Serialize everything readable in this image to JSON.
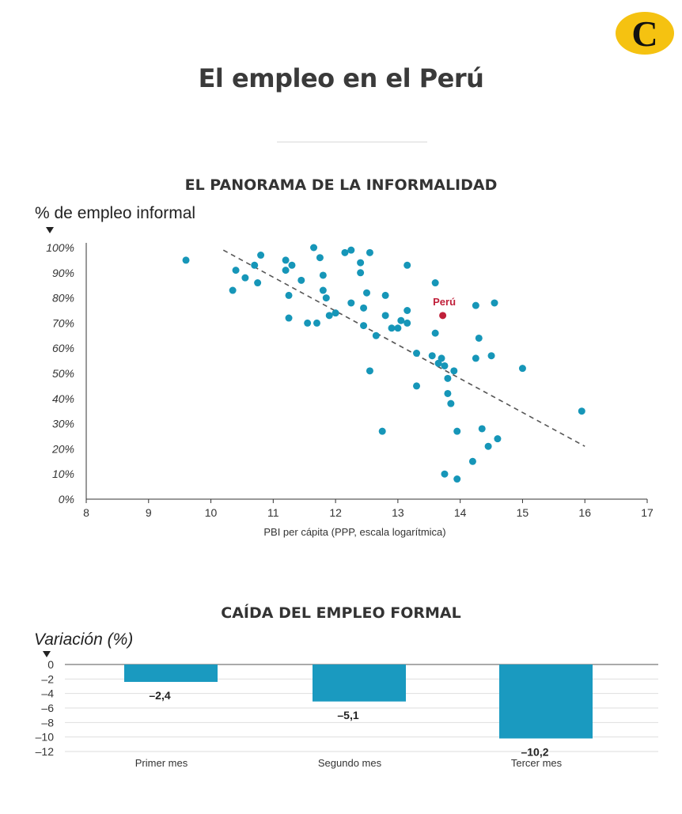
{
  "brand": {
    "logo_letter": "C",
    "logo_color": "#f5c211"
  },
  "title": "El empleo en el Perú",
  "colors": {
    "dots": "#1696b8",
    "bars": "#1a9ac0",
    "peru": "#c0203a",
    "trend": "#555555"
  },
  "chart_data": [
    {
      "type": "scatter",
      "title": "EL PANORAMA DE LA INFORMALIDAD",
      "ylabel": "% de empleo informal",
      "xlabel": "PBI per cápita (PPP, escala logarítmica)",
      "xlim": [
        8,
        17
      ],
      "ylim": [
        0,
        100
      ],
      "x_ticks": [
        "8",
        "9",
        "10",
        "11",
        "12",
        "13",
        "14",
        "15",
        "16",
        "17"
      ],
      "y_ticks": [
        "0%",
        "10%",
        "20%",
        "30%",
        "40%",
        "50%",
        "60%",
        "70%",
        "80%",
        "90%",
        "100%"
      ],
      "trendline": {
        "x": [
          10.2,
          16.0
        ],
        "y": [
          99,
          21
        ]
      },
      "highlight": {
        "label": "Perú",
        "x": 13.72,
        "y": 73
      },
      "points": [
        [
          9.6,
          95
        ],
        [
          10.35,
          83
        ],
        [
          10.4,
          91
        ],
        [
          10.55,
          88
        ],
        [
          10.7,
          93
        ],
        [
          10.75,
          86
        ],
        [
          10.8,
          97
        ],
        [
          11.2,
          95
        ],
        [
          11.2,
          91
        ],
        [
          11.25,
          81
        ],
        [
          11.25,
          72
        ],
        [
          11.3,
          93
        ],
        [
          11.45,
          87
        ],
        [
          11.55,
          70
        ],
        [
          11.65,
          100
        ],
        [
          11.7,
          70
        ],
        [
          11.75,
          96
        ],
        [
          11.8,
          89
        ],
        [
          11.8,
          83
        ],
        [
          11.85,
          80
        ],
        [
          11.9,
          73
        ],
        [
          12.0,
          74
        ],
        [
          12.15,
          98
        ],
        [
          12.25,
          78
        ],
        [
          12.25,
          99
        ],
        [
          12.4,
          90
        ],
        [
          12.4,
          94
        ],
        [
          12.45,
          76
        ],
        [
          12.45,
          69
        ],
        [
          12.5,
          82
        ],
        [
          12.55,
          51
        ],
        [
          12.55,
          98
        ],
        [
          12.65,
          65
        ],
        [
          12.75,
          27
        ],
        [
          12.8,
          81
        ],
        [
          12.8,
          73
        ],
        [
          12.9,
          68
        ],
        [
          13.0,
          68
        ],
        [
          13.05,
          71
        ],
        [
          13.15,
          93
        ],
        [
          13.15,
          75
        ],
        [
          13.15,
          70
        ],
        [
          13.3,
          58
        ],
        [
          13.3,
          45
        ],
        [
          13.55,
          57
        ],
        [
          13.6,
          86
        ],
        [
          13.6,
          66
        ],
        [
          13.65,
          54
        ],
        [
          13.7,
          56
        ],
        [
          13.75,
          10
        ],
        [
          13.75,
          53
        ],
        [
          13.8,
          48
        ],
        [
          13.8,
          42
        ],
        [
          13.85,
          38
        ],
        [
          13.9,
          51
        ],
        [
          13.95,
          8
        ],
        [
          13.95,
          27
        ],
        [
          14.2,
          15
        ],
        [
          14.25,
          56
        ],
        [
          14.25,
          77
        ],
        [
          14.3,
          64
        ],
        [
          14.35,
          28
        ],
        [
          14.45,
          21
        ],
        [
          14.5,
          57
        ],
        [
          14.55,
          78
        ],
        [
          14.6,
          24
        ],
        [
          15.0,
          52
        ],
        [
          15.95,
          35
        ]
      ]
    },
    {
      "type": "bar",
      "title": "CAÍDA DEL EMPLEO FORMAL",
      "ylabel": "Variación (%)",
      "categories": [
        "Primer mes",
        "Segundo mes",
        "Tercer mes"
      ],
      "values": [
        -2.4,
        -5.1,
        -10.2
      ],
      "value_labels": [
        "–2,4",
        "–5,1",
        "–10,2"
      ],
      "ylim": [
        -12,
        0
      ],
      "y_ticks": [
        "0",
        "–2",
        "–4",
        "–6",
        "–8",
        "–10",
        "–12"
      ]
    }
  ]
}
